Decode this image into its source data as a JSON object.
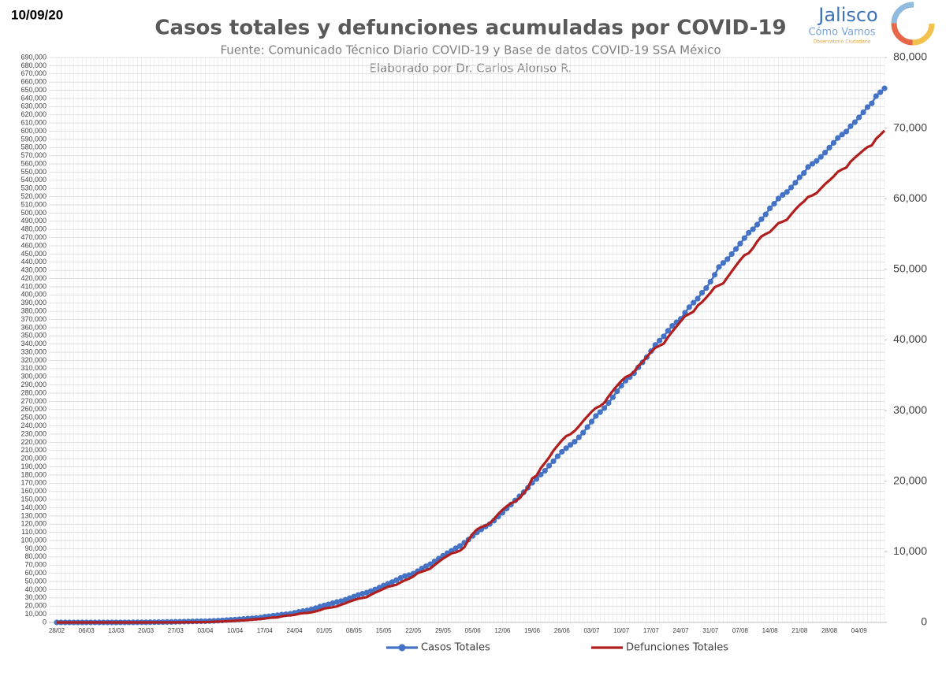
{
  "chart_data": {
    "type": "line",
    "date": "10/09/20",
    "title": "Casos totales y defunciones acumuladas por COVID-19",
    "subtitle": "Fuente: Comunicado Técnico Diario COVID-19 y Base de datos COVID-19 SSA México",
    "author": "Elaborado por Dr. Carlos Alonso R.",
    "logo": {
      "name": "Jalisco",
      "tagline": "Cómo Vamos",
      "subtitle": "Observatorio Ciudadano"
    },
    "grid": true,
    "legend": "bottom",
    "categories": [
      "28/02",
      null,
      null,
      null,
      null,
      null,
      null,
      "06/03",
      null,
      null,
      null,
      null,
      null,
      null,
      "13/03",
      null,
      null,
      null,
      null,
      null,
      null,
      "20/03",
      null,
      null,
      null,
      null,
      null,
      null,
      "27/03",
      null,
      null,
      null,
      null,
      null,
      null,
      "03/04",
      null,
      null,
      null,
      null,
      null,
      null,
      "10/04",
      null,
      null,
      null,
      null,
      null,
      null,
      "17/04",
      null,
      null,
      null,
      null,
      null,
      null,
      "24/04",
      null,
      null,
      null,
      null,
      null,
      null,
      "01/05",
      null,
      null,
      null,
      null,
      null,
      null,
      "08/05",
      null,
      null,
      null,
      null,
      null,
      null,
      "15/05",
      null,
      null,
      null,
      null,
      null,
      null,
      "22/05",
      null,
      null,
      null,
      null,
      null,
      null,
      "29/05",
      null,
      null,
      null,
      null,
      null,
      null,
      "05/06",
      null,
      null,
      null,
      null,
      null,
      null,
      "12/06",
      null,
      null,
      null,
      null,
      null,
      null,
      "19/06",
      null,
      null,
      null,
      null,
      null,
      null,
      "26/06",
      null,
      null,
      null,
      null,
      null,
      null,
      "03/07",
      null,
      null,
      null,
      null,
      null,
      null,
      "10/07",
      null,
      null,
      null,
      null,
      null,
      null,
      "17/07",
      null,
      null,
      null,
      null,
      null,
      null,
      "24/07",
      null,
      null,
      null,
      null,
      null,
      null,
      "31/07",
      null,
      null,
      null,
      null,
      null,
      null,
      "07/08",
      null,
      null,
      null,
      null,
      null,
      null,
      "14/08",
      null,
      null,
      null,
      null,
      null,
      null,
      "21/08",
      null,
      null,
      null,
      null,
      null,
      null,
      "28/08",
      null,
      null,
      null,
      null,
      null,
      null,
      "04/09",
      null,
      null,
      null,
      null,
      null,
      null
    ],
    "series": [
      {
        "name": "Casos Totales",
        "color": "#4472c4",
        "marker": true,
        "values": [
          1,
          2,
          2,
          4,
          4,
          5,
          5,
          5,
          6,
          7,
          7,
          11,
          15,
          19,
          26,
          41,
          53,
          82,
          93,
          118,
          164,
          203,
          251,
          316,
          367,
          405,
          475,
          585,
          717,
          830,
          960,
          1090,
          1215,
          1350,
          1430,
          1510,
          1688,
          1890,
          2143,
          2439,
          2785,
          3181,
          3441,
          3844,
          4219,
          4661,
          5014,
          5399,
          5847,
          6875,
          7497,
          8261,
          8772,
          9501,
          10000,
          10544,
          11633,
          12872,
          13842,
          14677,
          16000,
          17500,
          19224,
          20739,
          22088,
          23471,
          24905,
          26025,
          27634,
          29616,
          31522,
          33460,
          35022,
          36327,
          38324,
          40186,
          42595,
          45032,
          47144,
          49219,
          51633,
          54346,
          56594,
          57800,
          59567,
          62527,
          65856,
          68620,
          71105,
          74560,
          78023,
          81400,
          84627,
          87512,
          90664,
          93435,
          97326,
          101238,
          105680,
          110026,
          113619,
          117103,
          120102,
          124301,
          129184,
          133974,
          139196,
          144000,
          149000,
          154000,
          159000,
          164500,
          170485,
          175202,
          180545,
          185122,
          191410,
          196847,
          202951,
          208392,
          212802,
          216852,
          220657,
          226089,
          231770,
          238511,
          245251,
          252165,
          256848,
          261750,
          268008,
          275003,
          282283,
          289174,
          295268,
          299750,
          304435,
          311486,
          317635,
          324041,
          331298,
          338913,
          344224,
          349396,
          356255,
          362274,
          366500,
          370712,
          378285,
          385036,
          390516,
          395489,
          402697,
          408449,
          416179,
          424637,
          434193,
          439046,
          443813,
          449961,
          456100,
          462690,
          469407,
          475902,
          480278,
          485836,
          492522,
          498380,
          505751,
          511369,
          517714,
          522162,
          525733,
          531239,
          537031,
          543806,
          548904,
          556216,
          560164,
          563705,
          568621,
          573888,
          579914,
          585738,
          591712,
          595841,
          599560,
          606036,
          610957,
          616894,
          623090,
          629409,
          634023,
          642860,
          647507,
          652364
        ]
      },
      {
        "name": "Defunciones Totales",
        "color": "#b01e1e",
        "axis": "y2",
        "marker": false,
        "values": [
          0,
          0,
          0,
          0,
          0,
          0,
          0,
          0,
          0,
          0,
          0,
          0,
          0,
          0,
          0,
          0,
          0,
          0,
          0,
          1,
          2,
          2,
          2,
          2,
          4,
          5,
          6,
          8,
          12,
          16,
          20,
          28,
          29,
          37,
          45,
          50,
          79,
          94,
          125,
          141,
          174,
          194,
          233,
          273,
          296,
          332,
          406,
          449,
          486,
          546,
          650,
          686,
          712,
          857,
          970,
          1000,
          1069,
          1221,
          1305,
          1351,
          1434,
          1569,
          1732,
          1972,
          2061,
          2154,
          2271,
          2507,
          2704,
          2961,
          3160,
          3353,
          3465,
          3573,
          3926,
          4220,
          4477,
          4767,
          5045,
          5177,
          5332,
          5666,
          5958,
          6200,
          6510,
          6989,
          7179,
          7394,
          7633,
          8134,
          8597,
          9044,
          9415,
          9779,
          9930,
          10167,
          10637,
          11729,
          12545,
          13170,
          13511,
          13699,
          14053,
          14649,
          15357,
          15944,
          16448,
          16872,
          17141,
          17580,
          18310,
          19080,
          20394,
          20781,
          21825,
          22584,
          23377,
          24324,
          25060,
          25779,
          26381,
          26648,
          27121,
          27769,
          28510,
          29189,
          29843,
          30366,
          30639,
          31119,
          32014,
          32796,
          33526,
          34191,
          34730,
          35006,
          35491,
          36327,
          36906,
          37574,
          38310,
          38888,
          39184,
          39485,
          40400,
          41190,
          41908,
          42645,
          43374,
          43680,
          44022,
          44876,
          45361,
          46000,
          46688,
          47472,
          47746,
          48012,
          48869,
          49698,
          50517,
          51311,
          52006,
          52298,
          53003,
          53929,
          54666,
          55000,
          55293,
          55908,
          56543,
          56757,
          57023,
          57774,
          58481,
          59106,
          59610,
          60254,
          60480,
          60800,
          61450,
          62076,
          62594,
          63146,
          63819,
          64158,
          64414,
          65241,
          65816,
          66329,
          66851,
          67326,
          67558,
          68484,
          69049,
          69649
        ]
      }
    ],
    "ylim": [
      0,
      690000
    ],
    "yticks": [
      0,
      {
        "value": 10000,
        "label": "10,000"
      },
      {
        "value": 20000,
        "label": "20,000"
      },
      {
        "value": 30000,
        "label": "30,000"
      },
      {
        "value": 40000,
        "label": "40,000"
      },
      {
        "value": 50000,
        "label": "50,000"
      },
      {
        "value": 60000,
        "label": "60,000"
      },
      {
        "value": 70000,
        "label": "70,000"
      },
      {
        "value": 80000,
        "label": "80,000"
      },
      {
        "value": 90000,
        "label": "90,000"
      },
      {
        "value": 100000,
        "label": "100,000"
      },
      {
        "value": 110000,
        "label": "110,000"
      },
      {
        "value": 120000,
        "label": "120,000"
      },
      {
        "value": 130000,
        "label": "130,000"
      },
      {
        "value": 140000,
        "label": "140,000"
      },
      {
        "value": 150000,
        "label": "150,000"
      },
      {
        "value": 160000,
        "label": "160,000"
      },
      {
        "value": 170000,
        "label": "170,000"
      },
      {
        "value": 180000,
        "label": "180,000"
      },
      {
        "value": 190000,
        "label": "190,000"
      },
      {
        "value": 200000,
        "label": "200,000"
      },
      {
        "value": 210000,
        "label": "210,000"
      },
      {
        "value": 220000,
        "label": "220,000"
      },
      {
        "value": 230000,
        "label": "230,000"
      },
      {
        "value": 240000,
        "label": "240,000"
      },
      {
        "value": 250000,
        "label": "250,000"
      },
      {
        "value": 260000,
        "label": "260,000"
      },
      {
        "value": 270000,
        "label": "270,000"
      },
      {
        "value": 280000,
        "label": "280,000"
      },
      {
        "value": 290000,
        "label": "290,000"
      },
      {
        "value": 300000,
        "label": "300,000"
      },
      {
        "value": 310000,
        "label": "310,000"
      },
      {
        "value": 320000,
        "label": "320,000"
      },
      {
        "value": 330000,
        "label": "330,000"
      },
      {
        "value": 340000,
        "label": "340,000"
      },
      {
        "value": 350000,
        "label": "350,000"
      },
      {
        "value": 360000,
        "label": "360,000"
      },
      {
        "value": 370000,
        "label": "370,000"
      },
      {
        "value": 380000,
        "label": "380,000"
      },
      {
        "value": 390000,
        "label": "390,000"
      },
      {
        "value": 400000,
        "label": "400,000"
      },
      {
        "value": 410000,
        "label": "410,000"
      },
      {
        "value": 420000,
        "label": "420,000"
      },
      {
        "value": 430000,
        "label": "430,000"
      },
      {
        "value": 440000,
        "label": "440,000"
      },
      {
        "value": 450000,
        "label": "450,000"
      },
      {
        "value": 460000,
        "label": "460,000"
      },
      {
        "value": 470000,
        "label": "470,000"
      },
      {
        "value": 480000,
        "label": "480,000"
      },
      {
        "value": 490000,
        "label": "490,000"
      },
      {
        "value": 500000,
        "label": "500,000"
      },
      {
        "value": 510000,
        "label": "510,000"
      },
      {
        "value": 520000,
        "label": "520,000"
      },
      {
        "value": 530000,
        "label": "530,000"
      },
      {
        "value": 540000,
        "label": "540,000"
      },
      {
        "value": 550000,
        "label": "550,000"
      },
      {
        "value": 560000,
        "label": "560,000"
      },
      {
        "value": 570000,
        "label": "570,000"
      },
      {
        "value": 580000,
        "label": "580,000"
      },
      {
        "value": 590000,
        "label": "590,000"
      },
      {
        "value": 600000,
        "label": "600,000"
      },
      {
        "value": 610000,
        "label": "610,000"
      },
      {
        "value": 620000,
        "label": "620,000"
      },
      {
        "value": 630000,
        "label": "630,000"
      },
      {
        "value": 640000,
        "label": "640,000"
      },
      {
        "value": 650000,
        "label": "650,000"
      },
      {
        "value": 660000,
        "label": "660,000"
      },
      {
        "value": 670000,
        "label": "670,000"
      },
      {
        "value": 680000,
        "label": "680,000"
      },
      {
        "value": 690000,
        "label": "690,000"
      }
    ],
    "y2lim": [
      0,
      80000
    ],
    "y2ticks": [
      0,
      {
        "value": 10000,
        "label": "10,000"
      },
      {
        "value": 20000,
        "label": "20,000"
      },
      {
        "value": 30000,
        "label": "30,000"
      },
      {
        "value": 40000,
        "label": "40,000"
      },
      {
        "value": 50000,
        "label": "50,000"
      },
      {
        "value": 60000,
        "label": "60,000"
      },
      {
        "value": 70000,
        "label": "70,000"
      },
      {
        "value": 80000,
        "label": "80,000"
      }
    ]
  }
}
